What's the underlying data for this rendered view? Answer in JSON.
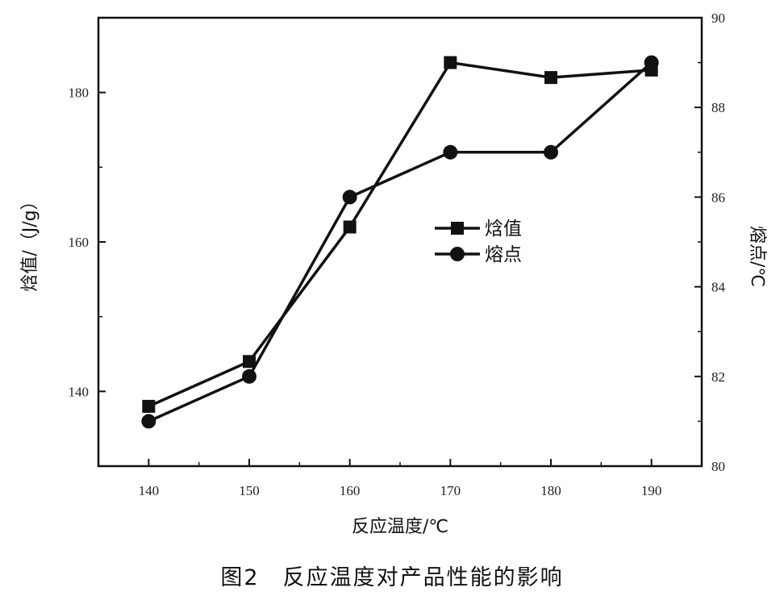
{
  "chart_data": {
    "type": "line",
    "x": [
      140,
      150,
      160,
      170,
      180,
      190
    ],
    "xlabel": "反应温度/℃",
    "xlim": [
      135,
      195
    ],
    "x_ticks": [
      140,
      150,
      160,
      170,
      180,
      190
    ],
    "ylabel_left": "焓值/（J/g）",
    "ylim_left": [
      130,
      190
    ],
    "y_ticks_left": [
      140,
      160,
      180
    ],
    "ylabel_right": "熔点/℃",
    "ylim_right": [
      80,
      90
    ],
    "y_ticks_right": [
      80,
      82,
      84,
      86,
      88,
      90
    ],
    "series": [
      {
        "name": "焓值",
        "axis": "left",
        "marker": "square",
        "color": "#111111",
        "values": [
          138,
          144,
          162,
          184,
          182,
          183
        ]
      },
      {
        "name": "熔点",
        "axis": "right",
        "marker": "circle",
        "color": "#111111",
        "values": [
          81.0,
          82.0,
          86.0,
          87.0,
          87.0,
          89.0
        ]
      }
    ],
    "legend_placement": "center",
    "grid": false
  },
  "caption": "图2　反应温度对产品性能的影响"
}
